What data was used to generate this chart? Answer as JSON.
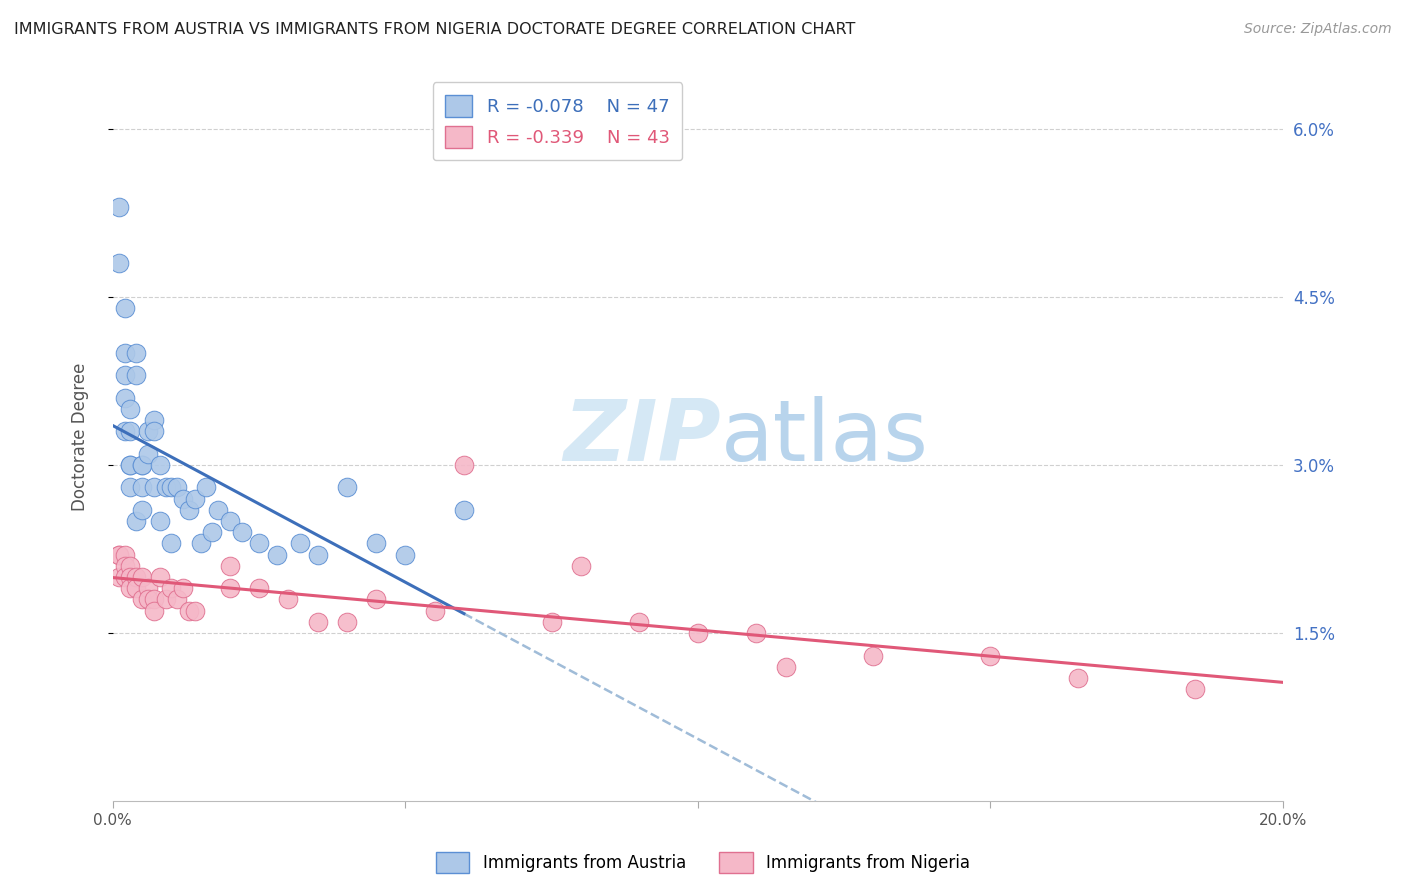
{
  "title": "IMMIGRANTS FROM AUSTRIA VS IMMIGRANTS FROM NIGERIA DOCTORATE DEGREE CORRELATION CHART",
  "source": "Source: ZipAtlas.com",
  "ylabel": "Doctorate Degree",
  "xlim": [
    0.0,
    0.2
  ],
  "ylim": [
    0.0,
    0.065
  ],
  "y_tick_pos": [
    0.015,
    0.03,
    0.045,
    0.06
  ],
  "y_tick_labels": [
    "1.5%",
    "3.0%",
    "4.5%",
    "6.0%"
  ],
  "x_tick_pos": [
    0.0,
    0.05,
    0.1,
    0.15,
    0.2
  ],
  "x_tick_labels": [
    "0.0%",
    "",
    "",
    "",
    "20.0%"
  ],
  "austria_R": -0.078,
  "austria_N": 47,
  "nigeria_R": -0.339,
  "nigeria_N": 43,
  "austria_color": "#adc8e8",
  "austria_edge_color": "#5b8fd4",
  "austria_line_color": "#3d6fba",
  "nigeria_color": "#f5b8c8",
  "nigeria_edge_color": "#e07090",
  "nigeria_line_color": "#e05878",
  "dashed_color": "#a0bcd8",
  "background_color": "#ffffff",
  "grid_color": "#d0d0d0",
  "right_axis_color": "#4472c4",
  "watermark_color": "#d5e8f5",
  "austria_x": [
    0.001,
    0.001,
    0.002,
    0.002,
    0.002,
    0.002,
    0.002,
    0.003,
    0.003,
    0.003,
    0.003,
    0.003,
    0.004,
    0.004,
    0.004,
    0.005,
    0.005,
    0.005,
    0.005,
    0.006,
    0.006,
    0.007,
    0.007,
    0.007,
    0.008,
    0.008,
    0.009,
    0.01,
    0.01,
    0.011,
    0.012,
    0.013,
    0.014,
    0.015,
    0.016,
    0.017,
    0.018,
    0.02,
    0.022,
    0.025,
    0.028,
    0.032,
    0.035,
    0.04,
    0.045,
    0.05,
    0.06
  ],
  "austria_y": [
    0.053,
    0.048,
    0.038,
    0.033,
    0.036,
    0.04,
    0.044,
    0.035,
    0.033,
    0.03,
    0.03,
    0.028,
    0.04,
    0.038,
    0.025,
    0.03,
    0.03,
    0.026,
    0.028,
    0.033,
    0.031,
    0.034,
    0.033,
    0.028,
    0.03,
    0.025,
    0.028,
    0.028,
    0.023,
    0.028,
    0.027,
    0.026,
    0.027,
    0.023,
    0.028,
    0.024,
    0.026,
    0.025,
    0.024,
    0.023,
    0.022,
    0.023,
    0.022,
    0.028,
    0.023,
    0.022,
    0.026
  ],
  "nigeria_x": [
    0.001,
    0.001,
    0.001,
    0.002,
    0.002,
    0.002,
    0.003,
    0.003,
    0.003,
    0.004,
    0.004,
    0.005,
    0.005,
    0.006,
    0.006,
    0.007,
    0.007,
    0.008,
    0.009,
    0.01,
    0.011,
    0.012,
    0.013,
    0.014,
    0.02,
    0.02,
    0.025,
    0.03,
    0.035,
    0.04,
    0.045,
    0.055,
    0.06,
    0.075,
    0.08,
    0.09,
    0.1,
    0.11,
    0.115,
    0.13,
    0.15,
    0.165,
    0.185
  ],
  "nigeria_y": [
    0.022,
    0.022,
    0.02,
    0.022,
    0.021,
    0.02,
    0.021,
    0.02,
    0.019,
    0.02,
    0.019,
    0.02,
    0.018,
    0.019,
    0.018,
    0.018,
    0.017,
    0.02,
    0.018,
    0.019,
    0.018,
    0.019,
    0.017,
    0.017,
    0.019,
    0.021,
    0.019,
    0.018,
    0.016,
    0.016,
    0.018,
    0.017,
    0.03,
    0.016,
    0.021,
    0.016,
    0.015,
    0.015,
    0.012,
    0.013,
    0.013,
    0.011,
    0.01
  ]
}
